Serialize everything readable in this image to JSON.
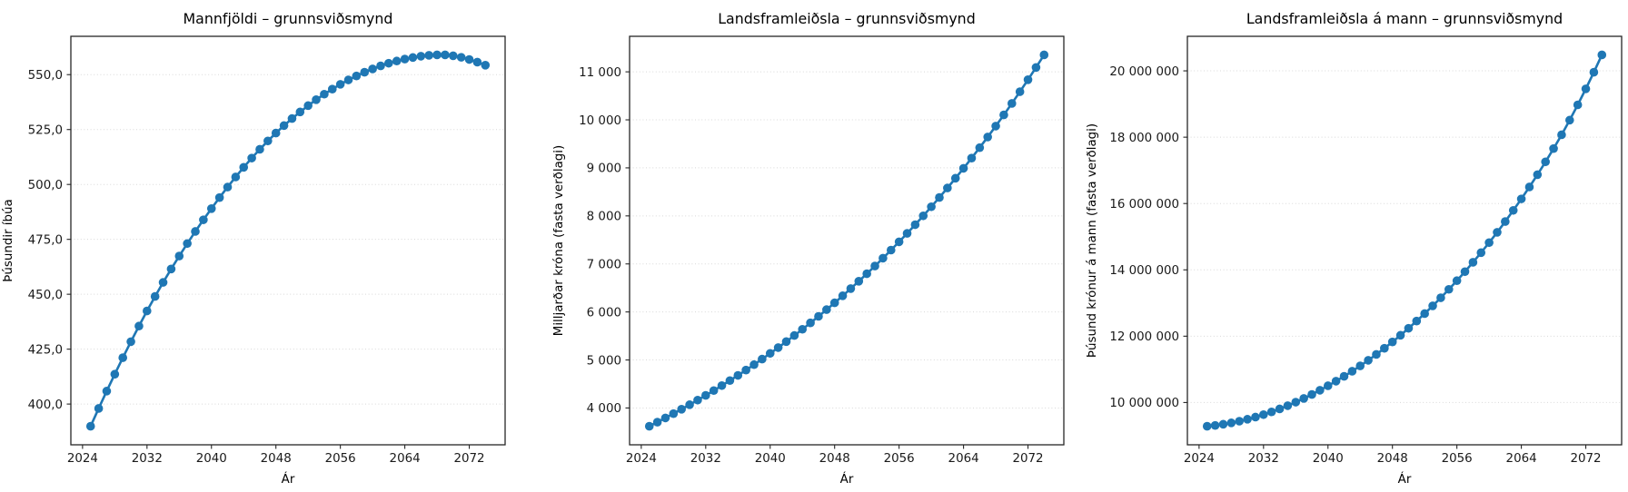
{
  "chart_data": {
    "type": "line",
    "x_label": "Ár",
    "grid": "horizontal-dotted",
    "legend": "none",
    "accent_color": "#1f77b4",
    "x_range_years": [
      2025,
      2074
    ],
    "x_ticks": [
      2024,
      2032,
      2040,
      2048,
      2056,
      2064,
      2072
    ],
    "years": [
      2025,
      2026,
      2027,
      2028,
      2029,
      2030,
      2031,
      2032,
      2033,
      2034,
      2035,
      2036,
      2037,
      2038,
      2039,
      2040,
      2041,
      2042,
      2043,
      2044,
      2045,
      2046,
      2047,
      2048,
      2049,
      2050,
      2051,
      2052,
      2053,
      2054,
      2055,
      2056,
      2057,
      2058,
      2059,
      2060,
      2061,
      2062,
      2063,
      2064,
      2065,
      2066,
      2067,
      2068,
      2069,
      2070,
      2071,
      2072,
      2073,
      2074
    ],
    "charts": [
      {
        "title": "Mannfjöldi – grunnsviðsmynd",
        "ylabel": "Þúsundir íbúa",
        "color": "#1f77b4",
        "marker": "circle",
        "y_tick_values": [
          400,
          425,
          450,
          475,
          500,
          525,
          550
        ],
        "y_tick_labels": [
          "400,0",
          "425,0",
          "450,0",
          "475,0",
          "500,0",
          "525,0",
          "550,0"
        ],
        "values": [
          389.9,
          398.0,
          405.9,
          413.6,
          421.1,
          428.4,
          435.5,
          442.4,
          449.0,
          455.4,
          461.5,
          467.4,
          473.1,
          478.6,
          483.9,
          489.0,
          494.0,
          498.8,
          503.4,
          507.8,
          512.0,
          516.0,
          519.8,
          523.4,
          526.8,
          530.0,
          533.0,
          535.9,
          538.6,
          541.1,
          543.4,
          545.6,
          547.6,
          549.4,
          551.1,
          552.6,
          554.0,
          555.2,
          556.2,
          557.1,
          557.8,
          558.4,
          558.8,
          559.0,
          559.0,
          558.6,
          557.9,
          556.9,
          555.7,
          554.3
        ]
      },
      {
        "title": "Landsframleiðsla – grunnsviðsmynd",
        "ylabel": "Milljarðar króna (fasta verðlagi)",
        "color": "#1f77b4",
        "marker": "circle",
        "y_tick_values": [
          4000,
          5000,
          6000,
          7000,
          8000,
          9000,
          10000,
          11000
        ],
        "y_tick_labels": [
          "4 000",
          "5 000",
          "6 000",
          "7 000",
          "8 000",
          "9 000",
          "10 000",
          "11 000"
        ],
        "values": [
          3620,
          3705,
          3793,
          3882,
          3974,
          4068,
          4164,
          4262,
          4363,
          4466,
          4571,
          4679,
          4789,
          4902,
          5018,
          5137,
          5258,
          5382,
          5509,
          5639,
          5772,
          5908,
          6048,
          6190,
          6336,
          6486,
          6639,
          6796,
          6956,
          7120,
          7288,
          7460,
          7636,
          7817,
          8001,
          8190,
          8383,
          8581,
          8784,
          8991,
          9203,
          9420,
          9643,
          9870,
          10103,
          10342,
          10586,
          10836,
          11091,
          11353
        ]
      },
      {
        "title": "Landsframleiðsla á mann – grunnsviðsmynd",
        "ylabel": "Þúsund krónur á mann (fasta verðlagi)",
        "color": "#1f77b4",
        "marker": "circle",
        "y_tick_values": [
          10000000,
          12000000,
          14000000,
          16000000,
          18000000,
          20000000
        ],
        "y_tick_labels": [
          "10 000 000",
          "12 000 000",
          "14 000 000",
          "16 000 000",
          "18 000 000",
          "20 000 000"
        ],
        "values": [
          9285000,
          9309000,
          9345000,
          9386000,
          9437000,
          9496000,
          9561000,
          9634000,
          9717000,
          9807000,
          9905000,
          10011000,
          10123000,
          10242000,
          10370000,
          10505000,
          10644000,
          10790000,
          10943000,
          11105000,
          11273000,
          11450000,
          11635000,
          11827000,
          12027000,
          12238000,
          12456000,
          12681000,
          12915000,
          13158000,
          13412000,
          13673000,
          13945000,
          14228000,
          14518000,
          14821000,
          15132000,
          15456000,
          15793000,
          16139000,
          16499000,
          16870000,
          17257000,
          17657000,
          18073000,
          18514000,
          18975000,
          19458000,
          19959000,
          20482000
        ]
      }
    ]
  }
}
